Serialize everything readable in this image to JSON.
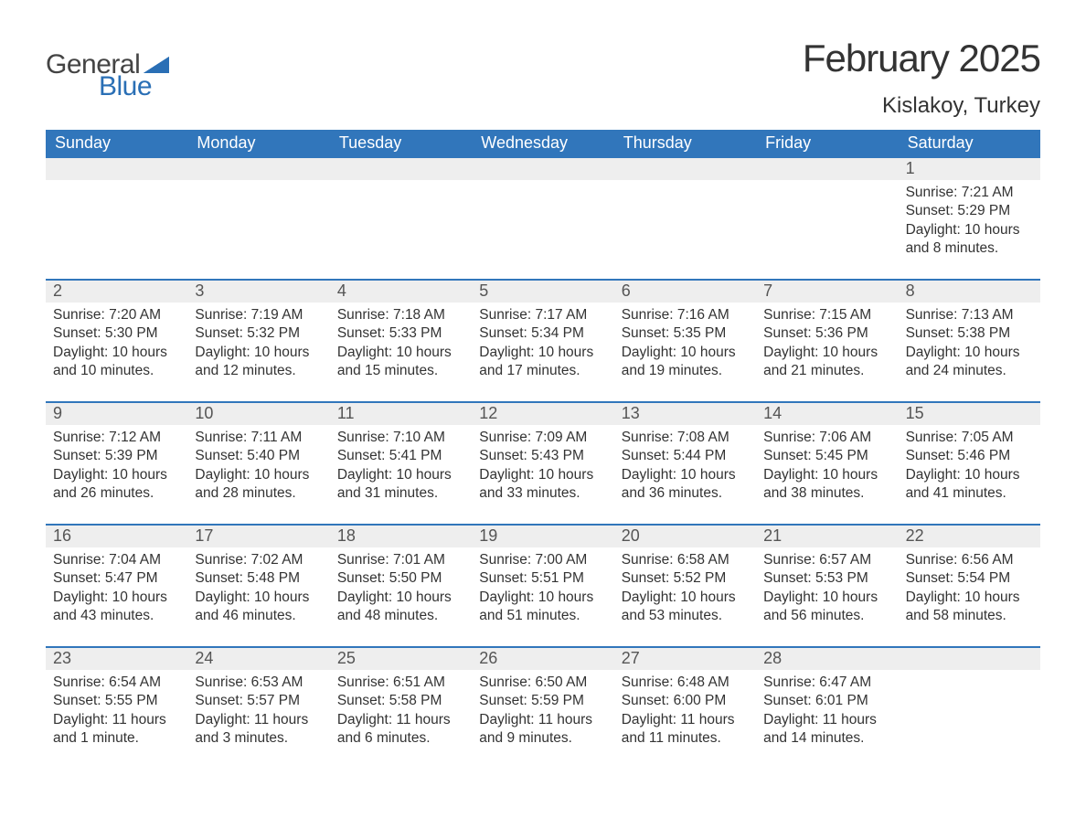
{
  "colors": {
    "header_bg": "#3176bb",
    "header_text": "#ffffff",
    "daynum_bg": "#eeeeee",
    "daynum_text": "#555555",
    "row_divider": "#3176bb",
    "body_text": "#333333",
    "background": "#ffffff",
    "logo_blue": "#2a6fb5",
    "logo_gray": "#444444"
  },
  "typography": {
    "month_title_fontsize": 42,
    "location_fontsize": 24,
    "weekday_fontsize": 18,
    "daynum_fontsize": 18,
    "detail_fontsize": 15.5
  },
  "layout": {
    "columns": 7,
    "detail_row_min_height": 108
  },
  "logo": {
    "word1": "General",
    "word2": "Blue"
  },
  "title": "February 2025",
  "location": "Kislakoy, Turkey",
  "weekdays": [
    "Sunday",
    "Monday",
    "Tuesday",
    "Wednesday",
    "Thursday",
    "Friday",
    "Saturday"
  ],
  "labels": {
    "sunrise": "Sunrise:",
    "sunset": "Sunset:",
    "daylight": "Daylight:"
  },
  "weeks": [
    [
      null,
      null,
      null,
      null,
      null,
      null,
      {
        "day": "1",
        "sunrise": "7:21 AM",
        "sunset": "5:29 PM",
        "daylight": "10 hours and 8 minutes."
      }
    ],
    [
      {
        "day": "2",
        "sunrise": "7:20 AM",
        "sunset": "5:30 PM",
        "daylight": "10 hours and 10 minutes."
      },
      {
        "day": "3",
        "sunrise": "7:19 AM",
        "sunset": "5:32 PM",
        "daylight": "10 hours and 12 minutes."
      },
      {
        "day": "4",
        "sunrise": "7:18 AM",
        "sunset": "5:33 PM",
        "daylight": "10 hours and 15 minutes."
      },
      {
        "day": "5",
        "sunrise": "7:17 AM",
        "sunset": "5:34 PM",
        "daylight": "10 hours and 17 minutes."
      },
      {
        "day": "6",
        "sunrise": "7:16 AM",
        "sunset": "5:35 PM",
        "daylight": "10 hours and 19 minutes."
      },
      {
        "day": "7",
        "sunrise": "7:15 AM",
        "sunset": "5:36 PM",
        "daylight": "10 hours and 21 minutes."
      },
      {
        "day": "8",
        "sunrise": "7:13 AM",
        "sunset": "5:38 PM",
        "daylight": "10 hours and 24 minutes."
      }
    ],
    [
      {
        "day": "9",
        "sunrise": "7:12 AM",
        "sunset": "5:39 PM",
        "daylight": "10 hours and 26 minutes."
      },
      {
        "day": "10",
        "sunrise": "7:11 AM",
        "sunset": "5:40 PM",
        "daylight": "10 hours and 28 minutes."
      },
      {
        "day": "11",
        "sunrise": "7:10 AM",
        "sunset": "5:41 PM",
        "daylight": "10 hours and 31 minutes."
      },
      {
        "day": "12",
        "sunrise": "7:09 AM",
        "sunset": "5:43 PM",
        "daylight": "10 hours and 33 minutes."
      },
      {
        "day": "13",
        "sunrise": "7:08 AM",
        "sunset": "5:44 PM",
        "daylight": "10 hours and 36 minutes."
      },
      {
        "day": "14",
        "sunrise": "7:06 AM",
        "sunset": "5:45 PM",
        "daylight": "10 hours and 38 minutes."
      },
      {
        "day": "15",
        "sunrise": "7:05 AM",
        "sunset": "5:46 PM",
        "daylight": "10 hours and 41 minutes."
      }
    ],
    [
      {
        "day": "16",
        "sunrise": "7:04 AM",
        "sunset": "5:47 PM",
        "daylight": "10 hours and 43 minutes."
      },
      {
        "day": "17",
        "sunrise": "7:02 AM",
        "sunset": "5:48 PM",
        "daylight": "10 hours and 46 minutes."
      },
      {
        "day": "18",
        "sunrise": "7:01 AM",
        "sunset": "5:50 PM",
        "daylight": "10 hours and 48 minutes."
      },
      {
        "day": "19",
        "sunrise": "7:00 AM",
        "sunset": "5:51 PM",
        "daylight": "10 hours and 51 minutes."
      },
      {
        "day": "20",
        "sunrise": "6:58 AM",
        "sunset": "5:52 PM",
        "daylight": "10 hours and 53 minutes."
      },
      {
        "day": "21",
        "sunrise": "6:57 AM",
        "sunset": "5:53 PM",
        "daylight": "10 hours and 56 minutes."
      },
      {
        "day": "22",
        "sunrise": "6:56 AM",
        "sunset": "5:54 PM",
        "daylight": "10 hours and 58 minutes."
      }
    ],
    [
      {
        "day": "23",
        "sunrise": "6:54 AM",
        "sunset": "5:55 PM",
        "daylight": "11 hours and 1 minute."
      },
      {
        "day": "24",
        "sunrise": "6:53 AM",
        "sunset": "5:57 PM",
        "daylight": "11 hours and 3 minutes."
      },
      {
        "day": "25",
        "sunrise": "6:51 AM",
        "sunset": "5:58 PM",
        "daylight": "11 hours and 6 minutes."
      },
      {
        "day": "26",
        "sunrise": "6:50 AM",
        "sunset": "5:59 PM",
        "daylight": "11 hours and 9 minutes."
      },
      {
        "day": "27",
        "sunrise": "6:48 AM",
        "sunset": "6:00 PM",
        "daylight": "11 hours and 11 minutes."
      },
      {
        "day": "28",
        "sunrise": "6:47 AM",
        "sunset": "6:01 PM",
        "daylight": "11 hours and 14 minutes."
      },
      null
    ]
  ]
}
